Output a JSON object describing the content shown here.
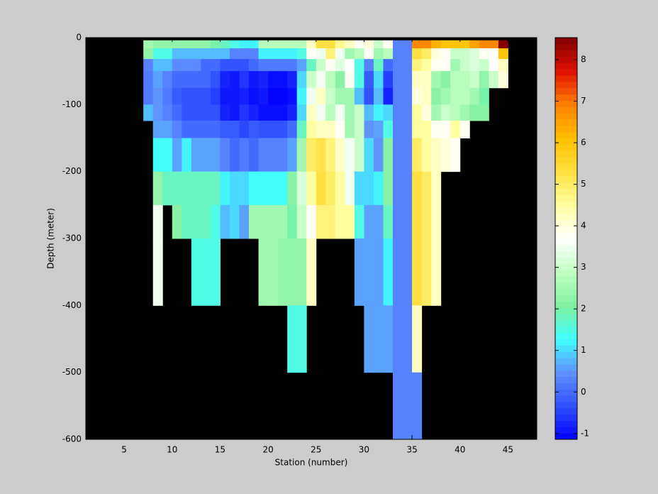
{
  "chart_data": {
    "type": "heatmap",
    "x_label": "Station (number)",
    "y_label": "Depth (meter)",
    "xlim": [
      1,
      48
    ],
    "xticks": [
      5,
      10,
      15,
      20,
      25,
      30,
      35,
      40,
      45
    ],
    "ylim": [
      -600,
      0
    ],
    "yticks": [
      0,
      -100,
      -200,
      -300,
      -400,
      -500,
      -600
    ],
    "x_edges": [
      7,
      8,
      9,
      10,
      11,
      12,
      13,
      14,
      15,
      16,
      17,
      18,
      19,
      20,
      21,
      22,
      23,
      24,
      25,
      26,
      27,
      28,
      29,
      30,
      31,
      32,
      33,
      35,
      36,
      37,
      38,
      39,
      40,
      41,
      42,
      43,
      44,
      45
    ],
    "y_edges": [
      -4,
      -16,
      -32,
      -50,
      -75,
      -100,
      -124,
      -150,
      -200,
      -250,
      -300,
      -400,
      -500,
      -600
    ],
    "values": [
      [
        2.5,
        2.3,
        2.3,
        2.3,
        2.3,
        2.3,
        2.3,
        2.0,
        1.8,
        1.5,
        1.2,
        1.2,
        2.8,
        2.8,
        2.8,
        2.8,
        2.8,
        4.2,
        5.3,
        5.3,
        4.6,
        4.2,
        3.8,
        4.0,
        3.0,
        3.8,
        0.3,
        6.8,
        6.8,
        6.3,
        6.0,
        6.0,
        6.0,
        6.5,
        6.8,
        6.8,
        8.5
      ],
      [
        2.3,
        1.5,
        1.5,
        0.8,
        0.8,
        0.8,
        0.8,
        0.8,
        0.8,
        0.3,
        0.3,
        0.3,
        1.2,
        1.2,
        1.2,
        1.2,
        1.5,
        3.8,
        3.5,
        4.8,
        3.5,
        2.5,
        2.8,
        3.8,
        2.5,
        2.8,
        0.3,
        5.3,
        5.0,
        4.0,
        3.8,
        3.0,
        3.0,
        3.2,
        3.8,
        3.7,
        6.0
      ],
      [
        0.3,
        0.8,
        0.8,
        0.4,
        0.4,
        0.4,
        0.0,
        0.0,
        -0.3,
        -0.3,
        -0.3,
        0.0,
        0.2,
        0.2,
        0.2,
        0.2,
        0.6,
        1.8,
        3.0,
        3.8,
        3.3,
        3.7,
        1.5,
        0.3,
        1.8,
        0.0,
        0.3,
        4.8,
        4.5,
        3.8,
        3.8,
        2.5,
        3.0,
        3.2,
        3.0,
        3.7,
        4.2
      ],
      [
        0.2,
        0.6,
        0.3,
        0.0,
        0.0,
        0.0,
        0.0,
        -0.3,
        -0.8,
        -0.9,
        -0.6,
        -0.9,
        -0.8,
        -1.0,
        -1.0,
        -0.8,
        1.0,
        3.0,
        3.5,
        2.8,
        2.2,
        3.8,
        1.5,
        -0.2,
        1.0,
        -0.5,
        0.3,
        4.2,
        4.2,
        2.5,
        2.2,
        2.8,
        2.8,
        3.0,
        2.3,
        3.0,
        4.0
      ],
      [
        0.2,
        0.5,
        0.2,
        -0.2,
        -0.3,
        -0.3,
        -0.3,
        -0.5,
        -0.9,
        -0.9,
        -0.8,
        -1.0,
        -0.9,
        -1.1,
        -1.1,
        -1.0,
        1.2,
        3.5,
        4.2,
        3.0,
        2.5,
        2.5,
        0.8,
        -0.3,
        0.8,
        -0.8,
        0.3,
        4.0,
        4.2,
        2.2,
        2.5,
        2.8,
        2.8,
        2.5,
        2.0,
        null,
        null
      ],
      [
        0.8,
        0.5,
        0.3,
        0.0,
        -0.3,
        -0.3,
        -0.3,
        -0.3,
        -0.8,
        -0.9,
        -0.6,
        -0.8,
        -1.0,
        -1.0,
        -1.0,
        -0.8,
        1.0,
        4.2,
        3.5,
        2.8,
        3.5,
        2.5,
        3.0,
        0.8,
        1.2,
        1.0,
        0.3,
        4.5,
        4.0,
        2.5,
        3.0,
        2.8,
        2.5,
        2.2,
        2.2,
        null,
        null
      ],
      [
        null,
        0.6,
        0.6,
        0.3,
        0.0,
        0.0,
        0.0,
        0.0,
        -0.2,
        -0.2,
        -0.4,
        -0.2,
        -0.3,
        -0.3,
        -0.3,
        0.0,
        1.8,
        4.5,
        4.2,
        4.2,
        3.8,
        2.5,
        3.0,
        0.5,
        0.6,
        1.5,
        0.3,
        4.5,
        4.5,
        3.8,
        3.8,
        4.5,
        3.8,
        null,
        null,
        null,
        null
      ],
      [
        null,
        1.3,
        1.3,
        0.6,
        1.2,
        0.6,
        0.6,
        0.6,
        0.3,
        0.0,
        0.2,
        0.0,
        0.3,
        0.3,
        0.3,
        0.6,
        2.5,
        5.0,
        5.2,
        4.8,
        4.2,
        3.5,
        3.0,
        1.0,
        0.5,
        2.2,
        0.3,
        5.0,
        4.5,
        4.2,
        4.0,
        3.8,
        null,
        null,
        null,
        null,
        null
      ],
      [
        null,
        2.3,
        1.8,
        1.8,
        1.8,
        1.8,
        1.8,
        1.8,
        1.2,
        1.0,
        1.0,
        1.3,
        1.3,
        1.3,
        1.3,
        2.2,
        3.2,
        4.5,
        5.3,
        5.0,
        4.5,
        3.5,
        1.0,
        1.0,
        1.2,
        2.2,
        0.3,
        5.3,
        5.0,
        4.2,
        null,
        null,
        null,
        null,
        null,
        null,
        null
      ],
      [
        null,
        3.5,
        null,
        2.2,
        1.8,
        1.8,
        1.8,
        1.5,
        0.8,
        1.0,
        0.6,
        2.5,
        2.5,
        2.5,
        2.5,
        2.0,
        3.0,
        3.8,
        4.8,
        4.8,
        4.5,
        4.5,
        1.5,
        0.6,
        0.6,
        1.8,
        0.3,
        5.3,
        5.0,
        4.2,
        null,
        null,
        null,
        null,
        null,
        null,
        null
      ],
      [
        null,
        3.5,
        null,
        null,
        null,
        1.5,
        1.5,
        1.5,
        null,
        null,
        null,
        null,
        2.5,
        2.5,
        2.3,
        2.3,
        2.3,
        4.2,
        null,
        null,
        null,
        null,
        0.6,
        0.6,
        0.6,
        1.2,
        0.3,
        5.3,
        5.0,
        4.2,
        null,
        null,
        null,
        null,
        null,
        null,
        null
      ],
      [
        null,
        null,
        null,
        null,
        null,
        null,
        null,
        null,
        null,
        null,
        null,
        null,
        null,
        null,
        null,
        1.5,
        1.5,
        null,
        null,
        null,
        null,
        null,
        null,
        0.6,
        0.6,
        0.6,
        0.3,
        4.2,
        null,
        null,
        null,
        null,
        null,
        null,
        null,
        null,
        null
      ],
      [
        null,
        null,
        null,
        null,
        null,
        null,
        null,
        null,
        null,
        null,
        null,
        null,
        null,
        null,
        null,
        null,
        null,
        null,
        null,
        null,
        null,
        null,
        null,
        null,
        null,
        null,
        0.3,
        0.3,
        null,
        null,
        null,
        null,
        null,
        null,
        null,
        null,
        null
      ]
    ],
    "clim": [
      -1.14,
      8.53
    ],
    "cticks": [
      -1,
      0,
      1,
      2,
      3,
      4,
      5,
      6,
      7,
      8
    ],
    "colormap": [
      "#0000ff",
      "#3050ff",
      "#6090ff",
      "#40ffff",
      "#80f0a0",
      "#c0ffc0",
      "#ffffff",
      "#ffffa0",
      "#ffe040",
      "#ffc000",
      "#ff8000",
      "#e01000",
      "#800000"
    ]
  }
}
